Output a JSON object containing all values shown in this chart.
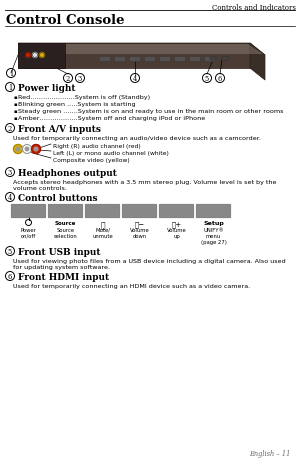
{
  "bg_color": "#ffffff",
  "header_text": "Controls and Indicators",
  "title": "Control Console",
  "title_fontsize": 9.5,
  "header_fontsize": 5.0,
  "body_fontsize": 4.6,
  "section_bold_fontsize": 6.5,
  "sections": [
    {
      "num": "1",
      "heading": "Power light",
      "bullets": [
        "Red…………………System is off (Standby)",
        "Blinking green …..System is starting",
        "Steady green …….System is on and ready to use in the main room or other rooms",
        "Amber………………System off and charging iPod or iPhone"
      ]
    },
    {
      "num": "2",
      "heading": "Front A/V inputs",
      "intro": "Used for temporarily connecting an audio/video device such as a camcorder.",
      "av_labels": [
        "Right (R) audio channel (red)",
        "Left (L) or mono audio channel (white)",
        "Composite video (yellow)"
      ],
      "av_colors": [
        "#cc2200",
        "#ffffff",
        "#ddaa00"
      ],
      "av_edge_colors": [
        "#991100",
        "#999999",
        "#aa8800"
      ]
    },
    {
      "num": "3",
      "heading": "Headphones output",
      "text": "Accepts stereo headphones with a 3.5 mm stereo plug. Volume level is set by the\nvolume controls."
    },
    {
      "num": "4",
      "heading": "Control buttons",
      "btn_labels": [
        "Power\non/off",
        "Source\nselection",
        "Mute/\nunmute",
        "Volume\ndown",
        "Volume\nup",
        "UNIFY®\nmenu\n(page 27)"
      ],
      "btn_top_labels": [
        "",
        "Source",
        "",
        "",
        "",
        "Setup"
      ]
    },
    {
      "num": "5",
      "heading": "Front USB input",
      "text": "Used for viewing photo files from a USB device including a digital camera. Also used\nfor updating system software."
    },
    {
      "num": "6",
      "heading": "Front HDMI input",
      "text": "Used for temporarily connecting an HDMI device such as a video camera."
    }
  ],
  "footer": "English – 11",
  "device_color_top": "#6b5c54",
  "device_color_side": "#4a3c35",
  "device_color_front": "#3a2e28"
}
